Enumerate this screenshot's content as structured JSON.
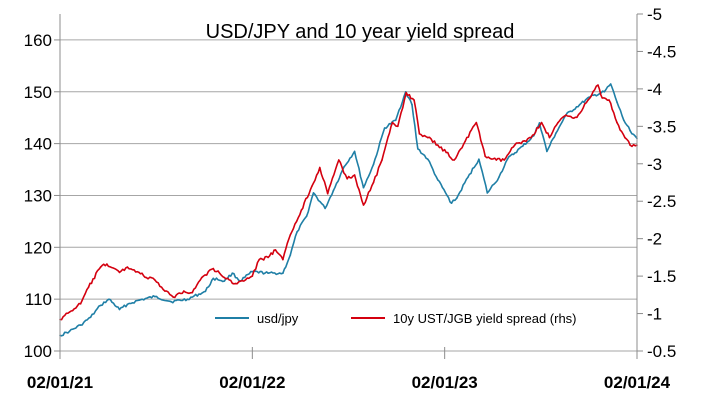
{
  "chart_data": {
    "type": "line",
    "title": "USD/JPY and 10 year yield spread",
    "x_ticks": [
      "02/01/21",
      "02/01/22",
      "02/01/23",
      "02/01/24"
    ],
    "x_range": [
      "2021-01-02",
      "2024-01-02"
    ],
    "y_left": {
      "ticks": [
        "100",
        "110",
        "120",
        "130",
        "140",
        "150",
        "160"
      ],
      "lim": [
        100,
        165
      ]
    },
    "y_right": {
      "ticks": [
        "-0.5",
        "-1",
        "-1.5",
        "-2",
        "-2.5",
        "-3",
        "-3.5",
        "-4",
        "-4.5",
        "-5"
      ],
      "lim": [
        -0.5,
        -5
      ],
      "inverted": true
    },
    "grid": true,
    "legend_position": "bottom-center",
    "series": [
      {
        "name": "usd/jpy",
        "axis": "left",
        "color": "#1f7fa6",
        "points": [
          [
            "2021-01-02",
            103.0
          ],
          [
            "2021-01-20",
            103.8
          ],
          [
            "2021-02-10",
            105.0
          ],
          [
            "2021-03-01",
            106.5
          ],
          [
            "2021-03-20",
            108.8
          ],
          [
            "2021-04-05",
            110.0
          ],
          [
            "2021-04-25",
            108.0
          ],
          [
            "2021-05-10",
            109.0
          ],
          [
            "2021-06-01",
            109.8
          ],
          [
            "2021-07-01",
            110.5
          ],
          [
            "2021-08-01",
            109.5
          ],
          [
            "2021-09-01",
            110.0
          ],
          [
            "2021-10-05",
            111.5
          ],
          [
            "2021-10-20",
            114.0
          ],
          [
            "2021-11-10",
            113.5
          ],
          [
            "2021-11-25",
            115.0
          ],
          [
            "2021-12-10",
            113.5
          ],
          [
            "2022-01-02",
            115.3
          ],
          [
            "2022-02-01",
            115.0
          ],
          [
            "2022-03-01",
            115.0
          ],
          [
            "2022-03-15",
            118.5
          ],
          [
            "2022-03-28",
            123.0
          ],
          [
            "2022-04-15",
            126.0
          ],
          [
            "2022-04-28",
            130.5
          ],
          [
            "2022-05-20",
            127.5
          ],
          [
            "2022-06-05",
            131.0
          ],
          [
            "2022-06-25",
            135.5
          ],
          [
            "2022-07-15",
            138.5
          ],
          [
            "2022-08-01",
            131.5
          ],
          [
            "2022-08-20",
            136.0
          ],
          [
            "2022-09-10",
            143.0
          ],
          [
            "2022-10-01",
            144.5
          ],
          [
            "2022-10-20",
            150.0
          ],
          [
            "2022-11-01",
            147.5
          ],
          [
            "2022-11-12",
            139.0
          ],
          [
            "2022-12-01",
            137.0
          ],
          [
            "2022-12-20",
            133.0
          ],
          [
            "2023-01-15",
            128.5
          ],
          [
            "2023-01-25",
            129.5
          ],
          [
            "2023-02-15",
            133.5
          ],
          [
            "2023-03-08",
            137.0
          ],
          [
            "2023-03-24",
            130.5
          ],
          [
            "2023-04-15",
            133.5
          ],
          [
            "2023-05-01",
            137.0
          ],
          [
            "2023-05-30",
            139.5
          ],
          [
            "2023-06-20",
            141.5
          ],
          [
            "2023-07-01",
            144.0
          ],
          [
            "2023-07-15",
            138.5
          ],
          [
            "2023-08-01",
            142.0
          ],
          [
            "2023-08-20",
            145.5
          ],
          [
            "2023-09-15",
            147.5
          ],
          [
            "2023-10-05",
            149.0
          ],
          [
            "2023-11-01",
            150.0
          ],
          [
            "2023-11-13",
            151.5
          ],
          [
            "2023-11-25",
            148.0
          ],
          [
            "2023-12-08",
            144.5
          ],
          [
            "2023-12-20",
            142.5
          ],
          [
            "2024-01-02",
            141.0
          ]
        ]
      },
      {
        "name": "10y UST/JGB yield spread (rhs)",
        "axis": "right",
        "color": "#d4000f",
        "points": [
          [
            "2021-01-02",
            -0.92
          ],
          [
            "2021-01-20",
            -1.02
          ],
          [
            "2021-02-10",
            -1.13
          ],
          [
            "2021-02-25",
            -1.35
          ],
          [
            "2021-03-20",
            -1.62
          ],
          [
            "2021-04-01",
            -1.66
          ],
          [
            "2021-04-25",
            -1.55
          ],
          [
            "2021-05-10",
            -1.62
          ],
          [
            "2021-06-01",
            -1.55
          ],
          [
            "2021-06-15",
            -1.48
          ],
          [
            "2021-07-01",
            -1.45
          ],
          [
            "2021-07-20",
            -1.3
          ],
          [
            "2021-08-05",
            -1.22
          ],
          [
            "2021-08-25",
            -1.3
          ],
          [
            "2021-09-10",
            -1.28
          ],
          [
            "2021-09-28",
            -1.48
          ],
          [
            "2021-10-20",
            -1.6
          ],
          [
            "2021-11-10",
            -1.48
          ],
          [
            "2021-12-01",
            -1.4
          ],
          [
            "2021-12-20",
            -1.45
          ],
          [
            "2022-01-02",
            -1.5
          ],
          [
            "2022-01-15",
            -1.72
          ],
          [
            "2022-02-01",
            -1.75
          ],
          [
            "2022-02-15",
            -1.85
          ],
          [
            "2022-03-01",
            -1.72
          ],
          [
            "2022-03-15",
            -2.05
          ],
          [
            "2022-04-05",
            -2.38
          ],
          [
            "2022-04-25",
            -2.7
          ],
          [
            "2022-05-10",
            -2.95
          ],
          [
            "2022-05-25",
            -2.6
          ],
          [
            "2022-06-15",
            -3.05
          ],
          [
            "2022-07-01",
            -2.8
          ],
          [
            "2022-07-15",
            -2.85
          ],
          [
            "2022-08-01",
            -2.45
          ],
          [
            "2022-08-20",
            -2.75
          ],
          [
            "2022-09-05",
            -3.05
          ],
          [
            "2022-09-25",
            -3.55
          ],
          [
            "2022-10-05",
            -3.5
          ],
          [
            "2022-10-21",
            -3.95
          ],
          [
            "2022-11-05",
            -3.85
          ],
          [
            "2022-11-15",
            -3.4
          ],
          [
            "2022-12-01",
            -3.35
          ],
          [
            "2022-12-20",
            -3.25
          ],
          [
            "2023-01-05",
            -3.15
          ],
          [
            "2023-01-20",
            -3.05
          ],
          [
            "2023-02-10",
            -3.3
          ],
          [
            "2023-03-03",
            -3.55
          ],
          [
            "2023-03-20",
            -3.1
          ],
          [
            "2023-04-10",
            -3.05
          ],
          [
            "2023-04-25",
            -3.05
          ],
          [
            "2023-05-15",
            -3.25
          ],
          [
            "2023-05-30",
            -3.3
          ],
          [
            "2023-06-15",
            -3.35
          ],
          [
            "2023-07-05",
            -3.55
          ],
          [
            "2023-07-20",
            -3.35
          ],
          [
            "2023-08-05",
            -3.55
          ],
          [
            "2023-08-20",
            -3.65
          ],
          [
            "2023-09-10",
            -3.62
          ],
          [
            "2023-10-01",
            -3.85
          ],
          [
            "2023-10-20",
            -4.05
          ],
          [
            "2023-10-28",
            -3.88
          ],
          [
            "2023-11-10",
            -3.85
          ],
          [
            "2023-11-25",
            -3.55
          ],
          [
            "2023-12-10",
            -3.35
          ],
          [
            "2023-12-20",
            -3.25
          ],
          [
            "2024-01-02",
            -3.25
          ]
        ]
      }
    ]
  }
}
